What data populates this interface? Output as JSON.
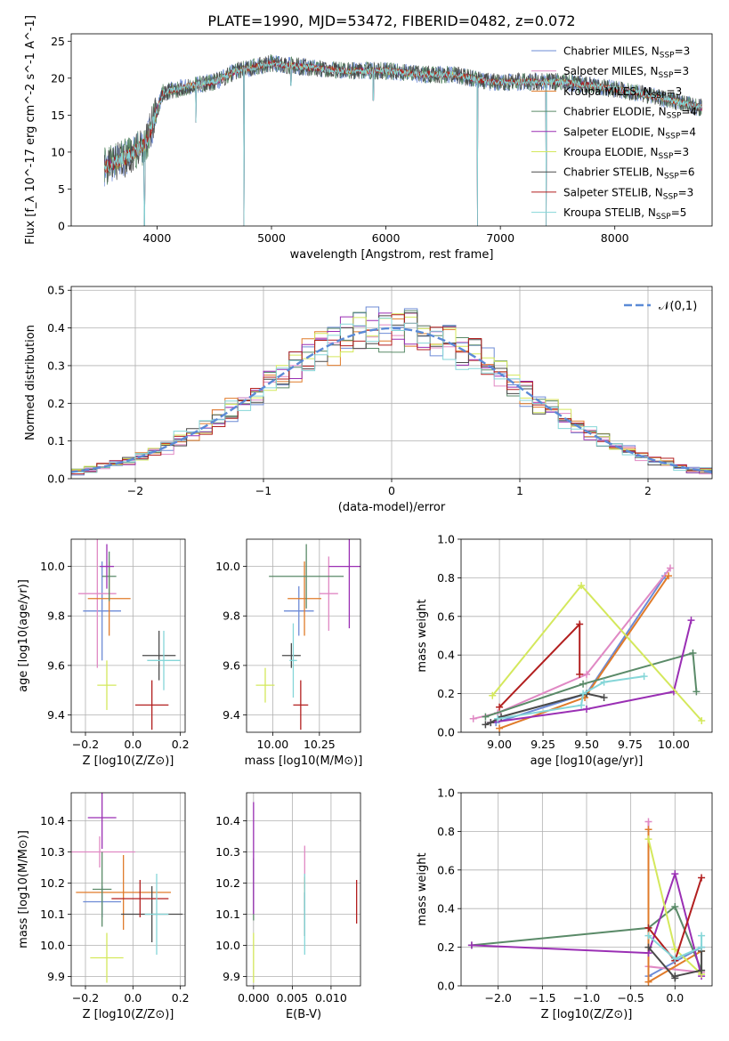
{
  "chart_data": [
    {
      "id": "spectrum",
      "type": "line",
      "title": "PLATE=1990, MJD=53472, FIBERID=0482, z=0.072",
      "xlabel": "wavelength [Angstrom, rest frame]",
      "ylabel": "Flux [f_λ 10^-17 erg cm^-2 s^-1 A^-1]",
      "xlim": [
        3250,
        8850
      ],
      "ylim": [
        0,
        26
      ],
      "xticks": [
        4000,
        5000,
        6000,
        7000,
        8000
      ],
      "yticks": [
        0,
        5,
        10,
        15,
        20,
        25
      ],
      "grid": false,
      "legend_position": "top-right",
      "continuum_points": [
        [
          3550,
          8
        ],
        [
          3700,
          9
        ],
        [
          3900,
          11
        ],
        [
          4050,
          18
        ],
        [
          4300,
          19
        ],
        [
          4500,
          19.5
        ],
        [
          4700,
          21
        ],
        [
          5000,
          22
        ],
        [
          5300,
          21.5
        ],
        [
          5600,
          21
        ],
        [
          6000,
          21
        ],
        [
          6300,
          20.5
        ],
        [
          6600,
          20.5
        ],
        [
          6900,
          19.5
        ],
        [
          7200,
          19.5
        ],
        [
          7500,
          19.5
        ],
        [
          7800,
          19
        ],
        [
          8200,
          18
        ],
        [
          8500,
          17
        ],
        [
          8750,
          16
        ]
      ],
      "features": [
        [
          3890,
          0
        ],
        [
          4340,
          14
        ],
        [
          4760,
          0
        ],
        [
          5170,
          19
        ],
        [
          5890,
          17
        ],
        [
          6800,
          0
        ],
        [
          7400,
          0
        ]
      ],
      "series": [
        {
          "name": "Chabrier MILES",
          "nssp": "3",
          "color": "#6d8bd6"
        },
        {
          "name": "Salpeter MILES",
          "nssp": "3",
          "color": "#e089c4"
        },
        {
          "name": "Kroupa MILES",
          "nssp": "3",
          "color": "#e07b2a"
        },
        {
          "name": "Chabrier ELODIE",
          "nssp": "4",
          "color": "#5a8a68"
        },
        {
          "name": "Salpeter ELODIE",
          "nssp": "4",
          "color": "#9a2fb4"
        },
        {
          "name": "Kroupa ELODIE",
          "nssp": "3",
          "color": "#d4e85c"
        },
        {
          "name": "Chabrier STELIB",
          "nssp": "6",
          "color": "#4a4a4a"
        },
        {
          "name": "Salpeter STELIB",
          "nssp": "3",
          "color": "#b21f1f"
        },
        {
          "name": "Kroupa STELIB",
          "nssp": "5",
          "color": "#85d6d8"
        }
      ]
    },
    {
      "id": "residuals",
      "type": "line",
      "xlabel": "(data-model)/error",
      "ylabel": "Normed distribution",
      "xlim": [
        -2.5,
        2.5
      ],
      "ylim": [
        0,
        0.51
      ],
      "xticks": [
        -2,
        -1,
        0,
        1,
        2
      ],
      "yticks": [
        0.0,
        0.1,
        0.2,
        0.3,
        0.4,
        0.5
      ],
      "grid": true,
      "legend_position": "top-right",
      "reference": {
        "name": "𝒩(0,1)",
        "color": "#5b8ad6",
        "mean": 0,
        "sigma": 1
      },
      "bin_width": 0.1,
      "approx": "histograms approximately following N(0,1)"
    },
    {
      "id": "age_vs_Z",
      "type": "scatter",
      "xlabel": "Z [log10(Z/Z⊙)]",
      "ylabel": "age [log10(age/yr)]",
      "xlim": [
        -0.26,
        0.22
      ],
      "ylim": [
        9.33,
        10.11
      ],
      "xticks": [
        -0.2,
        0.0,
        0.2
      ],
      "yticks": [
        9.4,
        9.6,
        9.8,
        10.0
      ],
      "grid": true,
      "points": [
        {
          "series": "Chabrier MILES",
          "x": -0.13,
          "xerr": 0.08,
          "y": 9.82,
          "yerr": 0.2
        },
        {
          "series": "Salpeter MILES",
          "x": -0.15,
          "xerr": 0.08,
          "y": 9.89,
          "yerr": 0.3
        },
        {
          "series": "Kroupa MILES",
          "x": -0.1,
          "xerr": 0.09,
          "y": 9.87,
          "yerr": 0.15
        },
        {
          "series": "Chabrier ELODIE",
          "x": -0.1,
          "xerr": 0.03,
          "y": 9.96,
          "yerr": 0.1
        },
        {
          "series": "Salpeter ELODIE",
          "x": -0.11,
          "xerr": 0.03,
          "y": 10.0,
          "yerr": 0.09
        },
        {
          "series": "Kroupa ELODIE",
          "x": -0.11,
          "xerr": 0.04,
          "y": 9.52,
          "yerr": 0.1
        },
        {
          "series": "Chabrier STELIB",
          "x": 0.11,
          "xerr": 0.07,
          "y": 9.64,
          "yerr": 0.1
        },
        {
          "series": "Salpeter STELIB",
          "x": 0.08,
          "xerr": 0.07,
          "y": 9.44,
          "yerr": 0.1
        },
        {
          "series": "Kroupa STELIB",
          "x": 0.13,
          "xerr": 0.07,
          "y": 9.62,
          "yerr": 0.12
        }
      ]
    },
    {
      "id": "age_vs_mass",
      "type": "scatter",
      "xlabel": "mass [log10(M/M⊙)]",
      "ylabel": "",
      "xlim": [
        9.86,
        10.47
      ],
      "ylim": [
        9.33,
        10.11
      ],
      "xticks": [
        10.0,
        10.25
      ],
      "yticks": [
        9.4,
        9.6,
        9.8,
        10.0
      ],
      "grid": true,
      "points": [
        {
          "series": "Chabrier MILES",
          "x": 10.14,
          "xerr": 0.08,
          "y": 9.82,
          "yerr": 0.1
        },
        {
          "series": "Salpeter MILES",
          "x": 10.3,
          "xerr": 0.05,
          "y": 9.89,
          "yerr": 0.15
        },
        {
          "series": "Kroupa MILES",
          "x": 10.17,
          "xerr": 0.09,
          "y": 9.87,
          "yerr": 0.15
        },
        {
          "series": "Chabrier ELODIE",
          "x": 10.18,
          "xerr": 0.2,
          "y": 9.96,
          "yerr": 0.13
        },
        {
          "series": "Salpeter ELODIE",
          "x": 10.41,
          "xerr": 0.11,
          "y": 10.0,
          "yerr": 0.25
        },
        {
          "series": "Kroupa ELODIE",
          "x": 9.96,
          "xerr": 0.05,
          "y": 9.52,
          "yerr": 0.07
        },
        {
          "series": "Chabrier STELIB",
          "x": 10.1,
          "xerr": 0.05,
          "y": 9.64,
          "yerr": 0.05
        },
        {
          "series": "Salpeter STELIB",
          "x": 10.15,
          "xerr": 0.04,
          "y": 9.44,
          "yerr": 0.1
        },
        {
          "series": "Kroupa STELIB",
          "x": 10.11,
          "xerr": 0.02,
          "y": 9.62,
          "yerr": 0.15
        }
      ]
    },
    {
      "id": "weight_vs_age",
      "type": "line",
      "xlabel": "age [log10(age/yr)]",
      "ylabel": "mass weight",
      "xlim": [
        8.78,
        10.22
      ],
      "ylim": [
        0,
        1
      ],
      "xticks": [
        9.0,
        9.25,
        9.5,
        9.75,
        10.0
      ],
      "yticks": [
        0.0,
        0.2,
        0.4,
        0.6,
        0.8,
        1.0
      ],
      "grid": true,
      "series": [
        {
          "name": "Chabrier MILES",
          "x": [
            8.98,
            9.5,
            9.95
          ],
          "y": [
            0.05,
            0.2,
            0.81
          ]
        },
        {
          "name": "Salpeter MILES",
          "x": [
            8.85,
            8.99,
            9.5,
            9.98
          ],
          "y": [
            0.07,
            0.1,
            0.3,
            0.85
          ]
        },
        {
          "name": "Kroupa MILES",
          "x": [
            9.0,
            9.49,
            9.97
          ],
          "y": [
            0.02,
            0.18,
            0.81
          ]
        },
        {
          "name": "Chabrier ELODIE",
          "x": [
            8.92,
            9.48,
            10.11,
            10.13
          ],
          "y": [
            0.08,
            0.25,
            0.41,
            0.21
          ]
        },
        {
          "name": "Salpeter ELODIE",
          "x": [
            8.95,
            9.5,
            10.0,
            10.1
          ],
          "y": [
            0.05,
            0.12,
            0.21,
            0.58
          ]
        },
        {
          "name": "Kroupa ELODIE",
          "x": [
            8.96,
            9.47,
            10.16
          ],
          "y": [
            0.19,
            0.76,
            0.06
          ]
        },
        {
          "name": "Chabrier STELIB",
          "x": [
            8.92,
            8.95,
            9.01,
            9.5,
            9.6
          ],
          "y": [
            0.04,
            0.05,
            0.08,
            0.2,
            0.18
          ]
        },
        {
          "name": "Salpeter STELIB",
          "x": [
            9.0,
            9.46,
            9.46
          ],
          "y": [
            0.13,
            0.56,
            0.3
          ]
        },
        {
          "name": "Kroupa STELIB",
          "x": [
            8.99,
            9.47,
            9.48,
            9.6,
            9.83
          ],
          "y": [
            0.07,
            0.14,
            0.2,
            0.26,
            0.29
          ]
        }
      ]
    },
    {
      "id": "mass_vs_Z",
      "type": "scatter",
      "xlabel": "Z [log10(Z/Z⊙)]",
      "ylabel": "mass [log10(M/M⊙)]",
      "xlim": [
        -0.26,
        0.22
      ],
      "ylim": [
        9.87,
        10.49
      ],
      "xticks": [
        -0.2,
        0.0,
        0.2
      ],
      "yticks": [
        9.9,
        10.0,
        10.1,
        10.2,
        10.3,
        10.4
      ],
      "grid": true,
      "points": [
        {
          "series": "Chabrier MILES",
          "x": -0.13,
          "xerr": 0.08,
          "y": 10.14,
          "yerr": 0.05
        },
        {
          "series": "Salpeter MILES",
          "x": -0.14,
          "xerr": 0.15,
          "y": 10.3,
          "yerr": 0.05
        },
        {
          "series": "Kroupa MILES",
          "x": -0.04,
          "xerr": 0.2,
          "y": 10.17,
          "yerr": 0.12
        },
        {
          "series": "Chabrier ELODIE",
          "x": -0.13,
          "xerr": 0.04,
          "y": 10.18,
          "yerr": 0.12
        },
        {
          "series": "Salpeter ELODIE",
          "x": -0.13,
          "xerr": 0.06,
          "y": 10.41,
          "yerr": 0.1
        },
        {
          "series": "Kroupa ELODIE",
          "x": -0.11,
          "xerr": 0.07,
          "y": 9.96,
          "yerr": 0.08
        },
        {
          "series": "Chabrier STELIB",
          "x": 0.08,
          "xerr": 0.13,
          "y": 10.1,
          "yerr": 0.09
        },
        {
          "series": "Salpeter STELIB",
          "x": 0.03,
          "xerr": 0.12,
          "y": 10.15,
          "yerr": 0.06
        },
        {
          "series": "Kroupa STELIB",
          "x": 0.1,
          "xerr": 0.05,
          "y": 10.1,
          "yerr": 0.13
        }
      ]
    },
    {
      "id": "mass_vs_ebv",
      "type": "scatter",
      "xlabel": "E(B-V)",
      "ylabel": "",
      "xlim": [
        -0.0009,
        0.0138
      ],
      "ylim": [
        9.87,
        10.49
      ],
      "xticks": [
        0.0,
        0.005,
        0.01
      ],
      "xticklabels": [
        "0.000",
        "0.005",
        "0.010"
      ],
      "yticks": [
        9.9,
        10.0,
        10.1,
        10.2,
        10.3,
        10.4
      ],
      "grid": true,
      "points": [
        {
          "series": "Chabrier MILES",
          "x": 0.0066,
          "y": 10.14,
          "yerr": 0.03
        },
        {
          "series": "Salpeter MILES",
          "x": 0.0066,
          "y": 10.25,
          "yerr": 0.07
        },
        {
          "series": "Kroupa MILES",
          "x": 0.0066,
          "y": 10.17,
          "yerr": 0.05
        },
        {
          "series": "Chabrier ELODIE",
          "x": 0.0,
          "y": 10.18,
          "yerr": 0.1
        },
        {
          "series": "Salpeter ELODIE",
          "x": 0.0,
          "y": 10.28,
          "yerr": 0.18
        },
        {
          "series": "Kroupa ELODIE",
          "x": 0.0,
          "y": 9.96,
          "yerr": 0.08
        },
        {
          "series": "Chabrier STELIB",
          "x": 0.0066,
          "y": 10.1,
          "yerr": 0.07
        },
        {
          "series": "Salpeter STELIB",
          "x": 0.0133,
          "y": 10.14,
          "yerr": 0.07
        },
        {
          "series": "Kroupa STELIB",
          "x": 0.0066,
          "y": 10.1,
          "yerr": 0.13
        }
      ]
    },
    {
      "id": "weight_vs_Z",
      "type": "line",
      "xlabel": "Z [log10(Z/Z⊙)]",
      "ylabel": "mass weight",
      "xlim": [
        -2.42,
        0.42
      ],
      "ylim": [
        0,
        1
      ],
      "xticks": [
        -2.0,
        -1.5,
        -1.0,
        -0.5,
        0.0
      ],
      "yticks": [
        0.0,
        0.2,
        0.4,
        0.6,
        0.8,
        1.0
      ],
      "grid": true,
      "series": [
        {
          "name": "Chabrier MILES",
          "x": [
            -0.3,
            -0.3,
            0.3
          ],
          "y": [
            0.81,
            0.05,
            0.2
          ]
        },
        {
          "name": "Salpeter MILES",
          "x": [
            -0.3,
            -0.3,
            0.3
          ],
          "y": [
            0.85,
            0.1,
            0.07
          ]
        },
        {
          "name": "Kroupa MILES",
          "x": [
            -0.3,
            -0.3,
            0.3
          ],
          "y": [
            0.81,
            0.02,
            0.18
          ]
        },
        {
          "name": "Chabrier ELODIE",
          "x": [
            -2.3,
            -0.3,
            0.0,
            0.3
          ],
          "y": [
            0.21,
            0.3,
            0.41,
            0.08
          ]
        },
        {
          "name": "Salpeter ELODIE",
          "x": [
            -2.3,
            -0.3,
            0.0,
            0.3
          ],
          "y": [
            0.21,
            0.17,
            0.58,
            0.05
          ]
        },
        {
          "name": "Kroupa ELODIE",
          "x": [
            -0.3,
            0.0,
            0.3
          ],
          "y": [
            0.76,
            0.19,
            0.06
          ]
        },
        {
          "name": "Chabrier STELIB",
          "x": [
            -0.3,
            0.0,
            0.0,
            0.3,
            0.3
          ],
          "y": [
            0.2,
            0.04,
            0.05,
            0.08,
            0.18
          ]
        },
        {
          "name": "Salpeter STELIB",
          "x": [
            -0.3,
            0.0,
            0.3
          ],
          "y": [
            0.3,
            0.13,
            0.56
          ]
        },
        {
          "name": "Kroupa STELIB",
          "x": [
            -0.3,
            0.0,
            0.3,
            0.3
          ],
          "y": [
            0.26,
            0.14,
            0.2,
            0.26
          ]
        }
      ]
    }
  ]
}
